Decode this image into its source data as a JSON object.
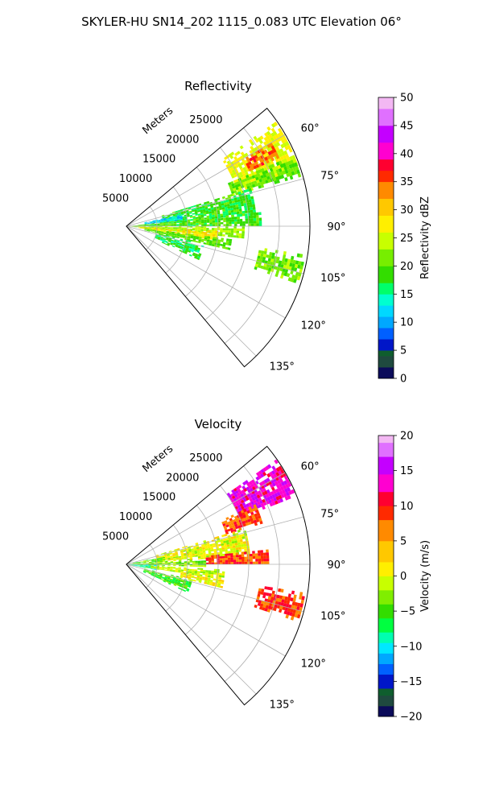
{
  "suptitle": "SKYLER-HU  SN14_202  1115_0.083 UTC Elevation 06°",
  "chart_data": [
    {
      "type": "heatmap",
      "projection": "polar-sector",
      "title": "Reflectivity",
      "radial_axis_label": "Meters",
      "radial_ticks": [
        5000,
        10000,
        15000,
        20000,
        25000
      ],
      "radial_tick_labels": [
        "5000",
        "10000",
        "15000",
        "20000",
        "25000"
      ],
      "range_max": 30000,
      "azimuth_range_deg": [
        50,
        140
      ],
      "azimuth_ticks_deg": [
        60,
        75,
        90,
        105,
        120,
        135
      ],
      "azimuth_tick_labels": [
        "60°",
        "75°",
        "90°",
        "105°",
        "120°",
        "135°"
      ],
      "grid": true,
      "colorbar": {
        "label": "Reflectivity dBZ",
        "range": [
          0,
          50
        ],
        "ticks": [
          0,
          5,
          10,
          15,
          20,
          25,
          30,
          35,
          40,
          45,
          50
        ],
        "tick_labels": [
          "0",
          "5",
          "10",
          "15",
          "20",
          "25",
          "30",
          "35",
          "40",
          "45",
          "50"
        ],
        "stops": [
          {
            "v": 0,
            "c": "#0b0b5a"
          },
          {
            "v": 2,
            "c": "#1f4a3f"
          },
          {
            "v": 4,
            "c": "#0f5e2e"
          },
          {
            "v": 5,
            "c": "#0016c8"
          },
          {
            "v": 7,
            "c": "#0060ff"
          },
          {
            "v": 9,
            "c": "#00a8ff"
          },
          {
            "v": 11,
            "c": "#00d8ff"
          },
          {
            "v": 13,
            "c": "#00ffd0"
          },
          {
            "v": 15,
            "c": "#00ff6a"
          },
          {
            "v": 17,
            "c": "#33dd00"
          },
          {
            "v": 20,
            "c": "#77ee00"
          },
          {
            "v": 23,
            "c": "#c8ff00"
          },
          {
            "v": 26,
            "c": "#ffef00"
          },
          {
            "v": 29,
            "c": "#ffc800"
          },
          {
            "v": 32,
            "c": "#ff8a00"
          },
          {
            "v": 35,
            "c": "#ff2a00"
          },
          {
            "v": 37,
            "c": "#ff0030"
          },
          {
            "v": 39,
            "c": "#ff00d0"
          },
          {
            "v": 42,
            "c": "#c400ff"
          },
          {
            "v": 45,
            "c": "#e070ff"
          },
          {
            "v": 48,
            "c": "#f3b8f3"
          },
          {
            "v": 50,
            "c": "#fde8fd"
          }
        ]
      },
      "echo_regions": [
        {
          "az": [
            55,
            72
          ],
          "r": [
            19000,
            30000
          ],
          "value": 26
        },
        {
          "az": [
            60,
            66
          ],
          "r": [
            22000,
            27000
          ],
          "value": 35
        },
        {
          "az": [
            67,
            74
          ],
          "r": [
            18000,
            30000
          ],
          "value": 21
        },
        {
          "az": [
            73,
            86
          ],
          "r": [
            6000,
            21000
          ],
          "value": 18
        },
        {
          "az": [
            78,
            84
          ],
          "r": [
            3000,
            9000
          ],
          "value": 12
        },
        {
          "az": [
            84,
            90
          ],
          "r": [
            1000,
            22000
          ],
          "value": 19
        },
        {
          "az": [
            90,
            96
          ],
          "r": [
            0,
            19000
          ],
          "value": 23
        },
        {
          "az": [
            93,
            99
          ],
          "r": [
            2000,
            15000
          ],
          "value": 28
        },
        {
          "az": [
            97,
            103
          ],
          "r": [
            3000,
            17000
          ],
          "value": 20
        },
        {
          "az": [
            99,
            108
          ],
          "r": [
            22000,
            30000
          ],
          "value": 21
        },
        {
          "az": [
            103,
            114
          ],
          "r": [
            5000,
            13000
          ],
          "value": 17
        }
      ]
    },
    {
      "type": "heatmap",
      "projection": "polar-sector",
      "title": "Velocity",
      "radial_axis_label": "Meters",
      "radial_ticks": [
        5000,
        10000,
        15000,
        20000,
        25000
      ],
      "radial_tick_labels": [
        "5000",
        "10000",
        "15000",
        "20000",
        "25000"
      ],
      "range_max": 30000,
      "azimuth_range_deg": [
        50,
        140
      ],
      "azimuth_ticks_deg": [
        60,
        75,
        90,
        105,
        120,
        135
      ],
      "azimuth_tick_labels": [
        "60°",
        "75°",
        "90°",
        "105°",
        "120°",
        "135°"
      ],
      "grid": true,
      "colorbar": {
        "label": "Velocity (m/s)",
        "range": [
          -20,
          20
        ],
        "ticks": [
          -20,
          -15,
          -10,
          -5,
          0,
          5,
          10,
          15,
          20
        ],
        "tick_labels": [
          "−20",
          "−15",
          "−10",
          "−5",
          "0",
          "5",
          "10",
          "15",
          "20"
        ],
        "stops": [
          {
            "v": -20,
            "c": "#0b0b5a"
          },
          {
            "v": -18.5,
            "c": "#1f4a3f"
          },
          {
            "v": -17,
            "c": "#0f5e2e"
          },
          {
            "v": -16,
            "c": "#0016c8"
          },
          {
            "v": -14,
            "c": "#0060ff"
          },
          {
            "v": -12.5,
            "c": "#00a8ff"
          },
          {
            "v": -11,
            "c": "#00e8ff"
          },
          {
            "v": -9.5,
            "c": "#00ffb0"
          },
          {
            "v": -8,
            "c": "#00ff40"
          },
          {
            "v": -6,
            "c": "#33dd00"
          },
          {
            "v": -4,
            "c": "#80ee00"
          },
          {
            "v": -2,
            "c": "#c8ff00"
          },
          {
            "v": 0,
            "c": "#ffef00"
          },
          {
            "v": 2,
            "c": "#ffc800"
          },
          {
            "v": 5,
            "c": "#ff8a00"
          },
          {
            "v": 8,
            "c": "#ff2a00"
          },
          {
            "v": 10,
            "c": "#ff0030"
          },
          {
            "v": 12,
            "c": "#ff00d0"
          },
          {
            "v": 14.5,
            "c": "#c400ff"
          },
          {
            "v": 17,
            "c": "#e070ff"
          },
          {
            "v": 19,
            "c": "#f3b8f3"
          },
          {
            "v": 20,
            "c": "#fde8fd"
          }
        ]
      },
      "echo_regions": [
        {
          "az": [
            55,
            68
          ],
          "r": [
            20000,
            30000
          ],
          "value": 14
        },
        {
          "az": [
            65,
            73
          ],
          "r": [
            17000,
            23000
          ],
          "value": 9
        },
        {
          "az": [
            73,
            86
          ],
          "r": [
            5000,
            20000
          ],
          "value": 0
        },
        {
          "az": [
            78,
            86
          ],
          "r": [
            1000,
            6000
          ],
          "value": -4
        },
        {
          "az": [
            84,
            90
          ],
          "r": [
            13000,
            23000
          ],
          "value": 9
        },
        {
          "az": [
            86,
            92
          ],
          "r": [
            0,
            13000
          ],
          "value": -3
        },
        {
          "az": [
            90,
            100
          ],
          "r": [
            0,
            5000
          ],
          "value": -8
        },
        {
          "az": [
            93,
            99
          ],
          "r": [
            4000,
            16000
          ],
          "value": -1
        },
        {
          "az": [
            98,
            104
          ],
          "r": [
            9000,
            16000
          ],
          "value": 1
        },
        {
          "az": [
            99,
            108
          ],
          "r": [
            22000,
            30000
          ],
          "value": 9
        },
        {
          "az": [
            103,
            114
          ],
          "r": [
            3000,
            11000
          ],
          "value": -5
        }
      ]
    }
  ]
}
